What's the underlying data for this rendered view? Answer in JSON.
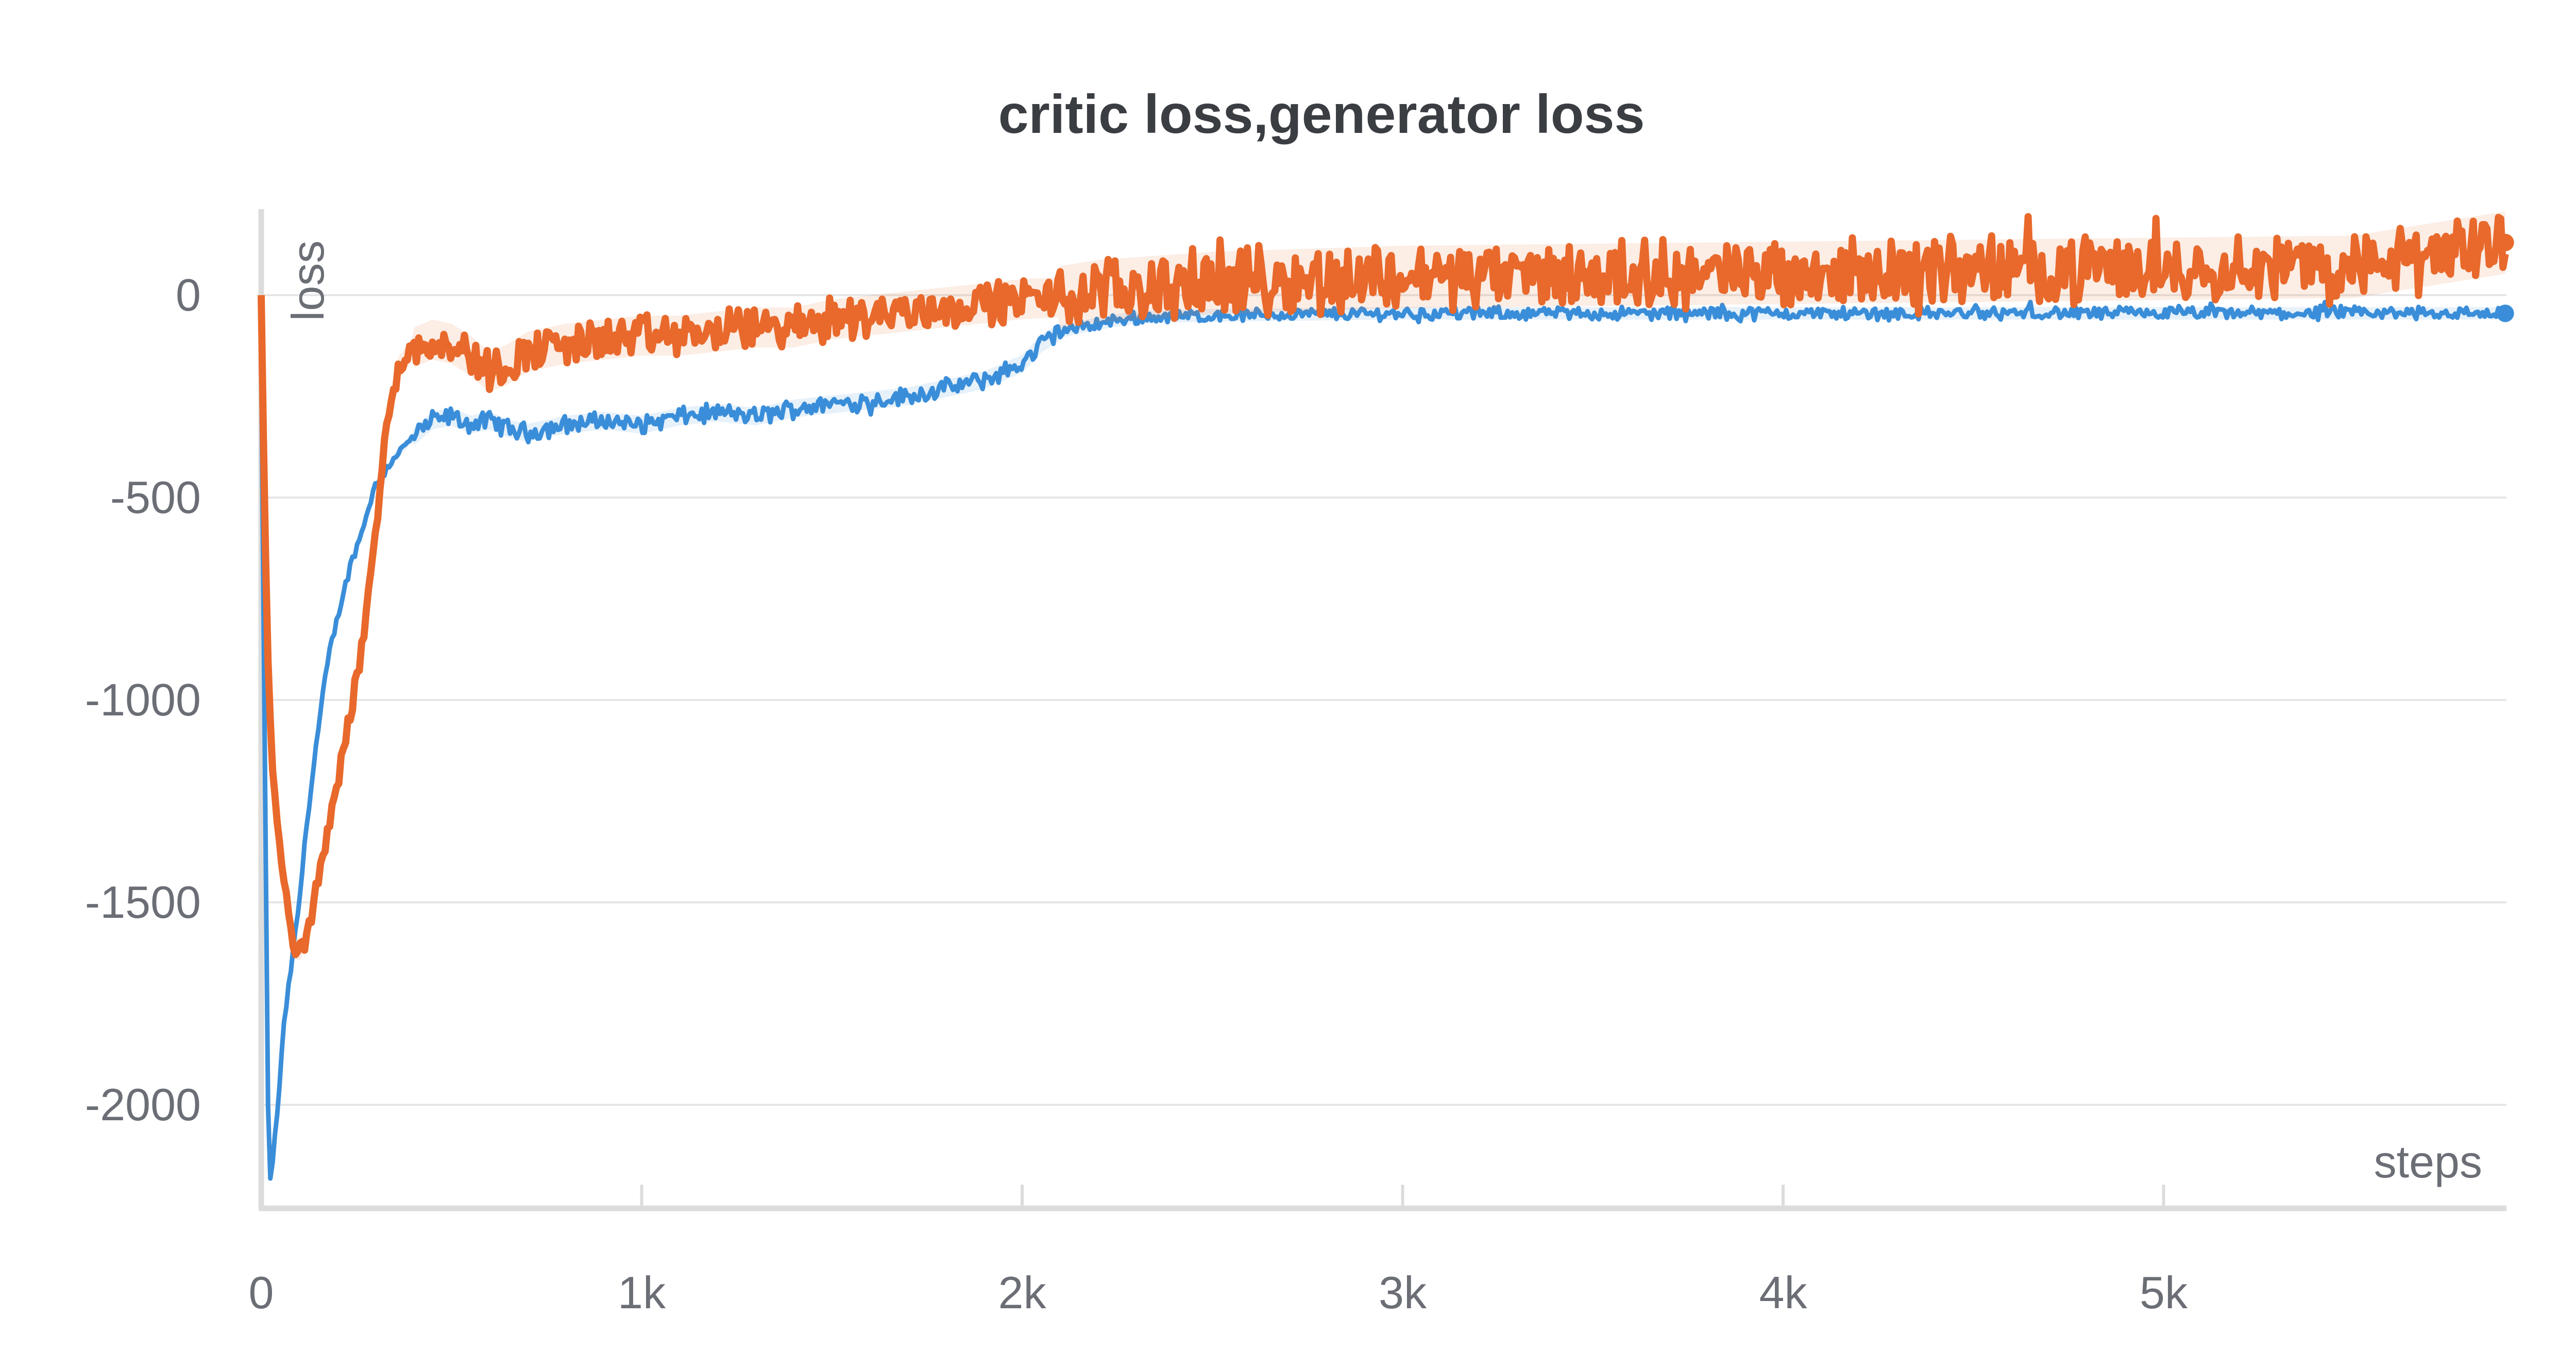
{
  "chart_data": {
    "type": "line",
    "title": "critic loss,generator loss",
    "xlabel": "steps",
    "ylabel": "loss",
    "xlim": [
      0,
      5900
    ],
    "ylim": [
      -2230,
      220
    ],
    "x_ticks": [
      {
        "value": 0,
        "label": "0"
      },
      {
        "value": 1000,
        "label": "1k"
      },
      {
        "value": 2000,
        "label": "2k"
      },
      {
        "value": 3000,
        "label": "3k"
      },
      {
        "value": 4000,
        "label": "4k"
      },
      {
        "value": 5000,
        "label": "5k"
      }
    ],
    "y_ticks": [
      {
        "value": 0,
        "label": "0"
      },
      {
        "value": -500,
        "label": "-500"
      },
      {
        "value": -1000,
        "label": "-1000"
      },
      {
        "value": -1500,
        "label": "-1500"
      },
      {
        "value": -2000,
        "label": "-2000"
      }
    ],
    "grid": true,
    "legend": "none",
    "series": [
      {
        "color": "#3a8ed9",
        "x": [
          0,
          20,
          40,
          60,
          80,
          100,
          120,
          140,
          160,
          180,
          200,
          220,
          240,
          260,
          280,
          300,
          350,
          400,
          450,
          500,
          550,
          600,
          650,
          700,
          800,
          900,
          1000,
          1100,
          1200,
          1300,
          1400,
          1500,
          1600,
          1700,
          1800,
          1900,
          2000,
          2050,
          2100,
          2200,
          2300,
          2500,
          3000,
          3500,
          4000,
          4500,
          5000,
          5500,
          5900
        ],
        "y": [
          -150,
          -2220,
          -2050,
          -1800,
          -1650,
          -1500,
          -1300,
          -1150,
          -1000,
          -880,
          -800,
          -720,
          -650,
          -600,
          -530,
          -470,
          -400,
          -350,
          -310,
          -300,
          -320,
          -310,
          -330,
          -340,
          -320,
          -310,
          -320,
          -300,
          -290,
          -300,
          -280,
          -270,
          -260,
          -250,
          -230,
          -210,
          -170,
          -120,
          -90,
          -70,
          -55,
          -50,
          -45,
          -45,
          -45,
          -45,
          -45,
          -45,
          -45
        ]
      },
      {
        "color": "#e8692b",
        "x": [
          0,
          10,
          20,
          40,
          60,
          80,
          100,
          120,
          140,
          160,
          180,
          200,
          220,
          240,
          260,
          280,
          300,
          320,
          340,
          360,
          400,
          450,
          500,
          550,
          600,
          650,
          700,
          800,
          900,
          1000,
          1100,
          1200,
          1300,
          1400,
          1500,
          1600,
          1700,
          1800,
          1900,
          2000,
          2100,
          2200,
          2500,
          3000,
          3500,
          4000,
          4500,
          5000,
          5500,
          5900
        ],
        "y": [
          0,
          -600,
          -1000,
          -1300,
          -1450,
          -1600,
          -1620,
          -1580,
          -1500,
          -1400,
          -1300,
          -1200,
          -1100,
          -1000,
          -900,
          -750,
          -600,
          -400,
          -260,
          -180,
          -130,
          -110,
          -120,
          -150,
          -190,
          -170,
          -140,
          -120,
          -110,
          -100,
          -100,
          -90,
          -80,
          -80,
          -60,
          -50,
          -40,
          -30,
          -20,
          -10,
          -5,
          10,
          30,
          45,
          50,
          55,
          60,
          65,
          70,
          130
        ]
      }
    ]
  }
}
